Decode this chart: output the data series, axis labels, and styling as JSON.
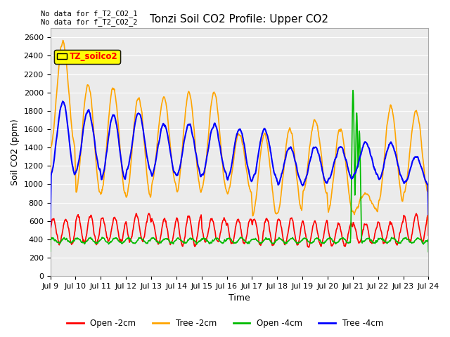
{
  "title": "Tonzi Soil CO2 Profile: Upper CO2",
  "ylabel": "Soil CO2 (ppm)",
  "xlabel": "Time",
  "annotations": [
    "No data for f_T2_CO2_1",
    "No data for f_T2_CO2_2"
  ],
  "legend_label": "TZ_soilco2",
  "legend_entries": [
    "Open -2cm",
    "Tree -2cm",
    "Open -4cm",
    "Tree -4cm"
  ],
  "legend_colors": [
    "#ff0000",
    "#ffa500",
    "#00bb00",
    "#0000ff"
  ],
  "ylim": [
    0,
    2700
  ],
  "yticks": [
    0,
    200,
    400,
    600,
    800,
    1000,
    1200,
    1400,
    1600,
    1800,
    2000,
    2200,
    2400,
    2600
  ],
  "x_tick_labels": [
    "Jul 9",
    "Jul 10",
    "Jul 11",
    "Jul 12",
    "Jul 13",
    "Jul 14",
    "Jul 15",
    "Jul 16",
    "Jul 17",
    "Jul 18",
    "Jul 19",
    "Jul 20",
    "Jul 21",
    "Jul 22",
    "Jul 23",
    "Jul 24"
  ],
  "bg_color": "#ebebeb",
  "grid_color": "#ffffff",
  "line_width": 1.2
}
